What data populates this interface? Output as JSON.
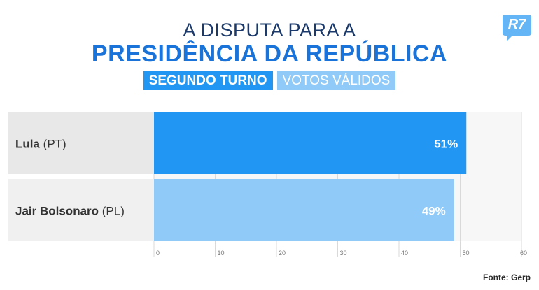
{
  "header": {
    "title_line1": "A DISPUTA PARA A",
    "title_line2": "PRESIDÊNCIA DA REPÚBLICA",
    "tag1": "SEGUNDO TURNO",
    "tag2": "VOTOS VÁLIDOS",
    "logo": "R7"
  },
  "source": "Fonte: Gerp",
  "colors": {
    "bar_primary": "#2196f3",
    "bar_secondary": "#90caf9",
    "label_bg_1": "#e8e8e8",
    "label_bg_2": "#f0f0f0",
    "logo": "#64b5f6"
  },
  "chart_data": {
    "type": "bar",
    "orientation": "horizontal",
    "categories": [
      {
        "name": "Lula",
        "party": "(PT)"
      },
      {
        "name": "Jair Bolsonaro",
        "party": "(PL)"
      }
    ],
    "values": [
      51,
      49
    ],
    "value_labels": [
      "51%",
      "49%"
    ],
    "xlim": [
      0,
      60
    ],
    "xticks": [
      "0",
      "10",
      "20",
      "30",
      "40",
      "50",
      "60"
    ],
    "grid": true
  }
}
